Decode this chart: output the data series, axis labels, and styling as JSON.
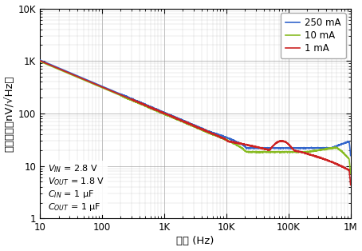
{
  "xlabel": "频率 (Hz)",
  "ylabel": "输出噪声（nV/√Hz）",
  "xlim": [
    10,
    1000000
  ],
  "ylim": [
    1,
    10000
  ],
  "legend_labels": [
    "1 mA",
    "10 mA",
    "250 mA"
  ],
  "legend_colors": [
    "#cc2222",
    "#88bb22",
    "#3366cc"
  ],
  "background_color": "#ffffff",
  "grid_major_color": "#999999",
  "grid_minor_color": "#bbbbbb",
  "line_width": 1.2,
  "font_size": 8.5
}
